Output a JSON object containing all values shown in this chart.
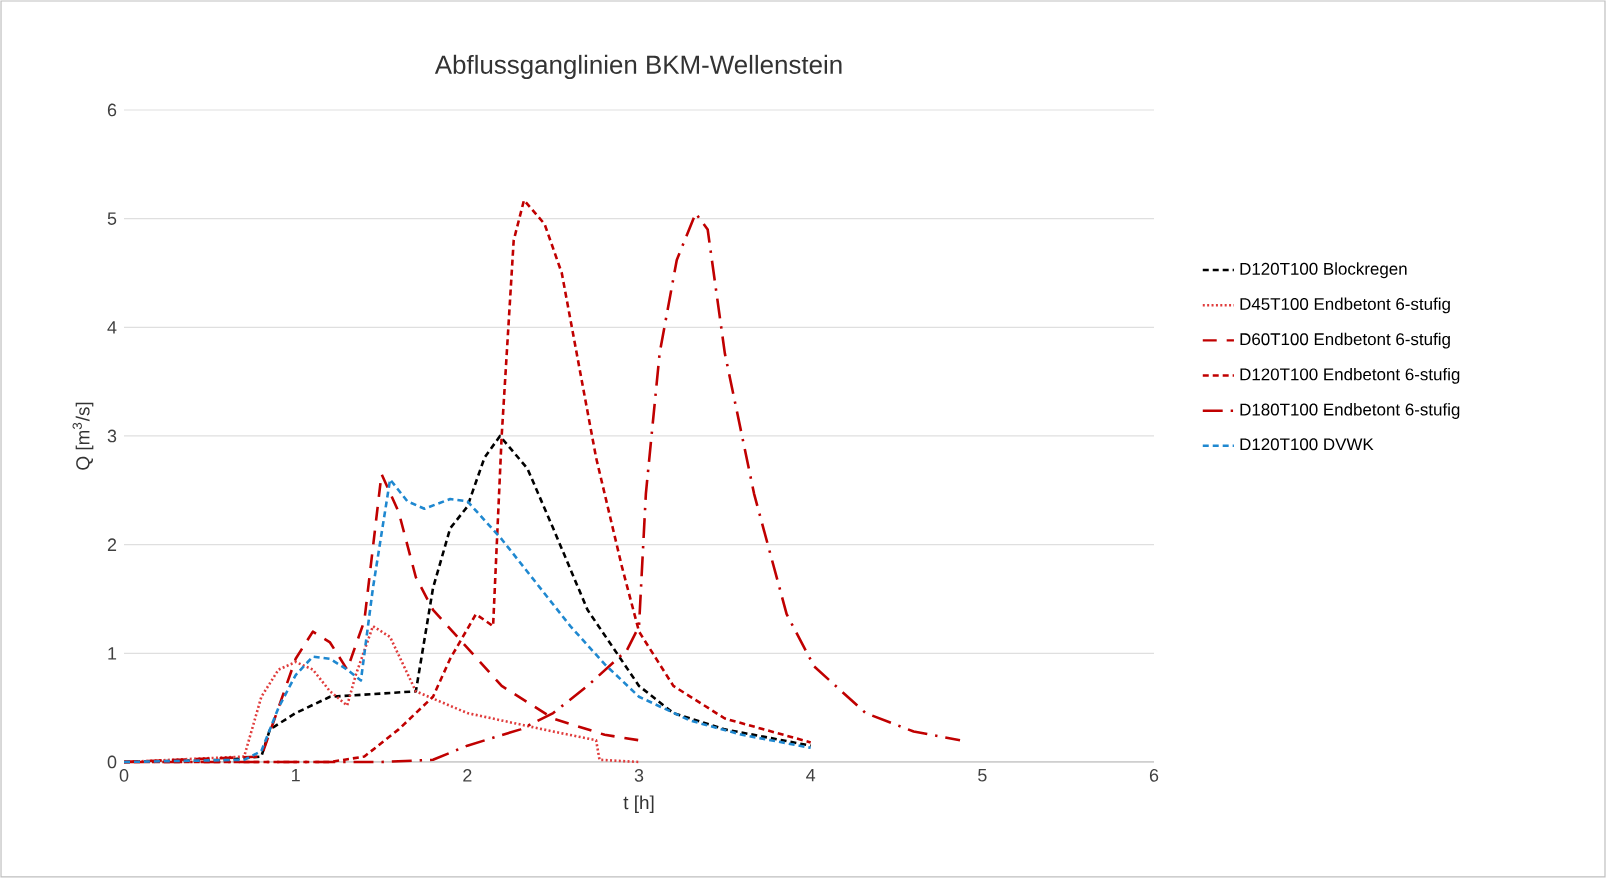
{
  "chart_data": {
    "type": "line",
    "title": "Abflussganglinien BKM-Wellenstein",
    "xlabel": "t [h]",
    "ylabel": "Q [m$^{3}$/s]",
    "xlim": [
      0,
      6
    ],
    "ylim": [
      0,
      6
    ],
    "xticks": [
      0,
      1,
      2,
      3,
      4,
      5,
      6
    ],
    "yticks": [
      0,
      1,
      2,
      3,
      4,
      5,
      6
    ],
    "grid": "y",
    "legend": "right",
    "marker": "none",
    "series": [
      {
        "name": "D120T100 Blockregen",
        "color": "#000000",
        "line_style": "dashed",
        "x": [
          0,
          0.6,
          0.8,
          0.85,
          1.0,
          1.2,
          1.4,
          1.5,
          1.7,
          1.8,
          1.9,
          2.0,
          2.1,
          2.19,
          2.35,
          2.5,
          2.7,
          3.0,
          3.2,
          3.5,
          4.0
        ],
        "values": [
          0,
          0.02,
          0.05,
          0.3,
          0.45,
          0.6,
          0.62,
          0.63,
          0.65,
          1.6,
          2.15,
          2.35,
          2.8,
          3.0,
          2.7,
          2.15,
          1.4,
          0.7,
          0.45,
          0.3,
          0.15
        ]
      },
      {
        "name": "D45T100 Endbetont 6-stufig",
        "color": "#e03c3c",
        "line_style": "dotted",
        "x": [
          0,
          0.7,
          0.8,
          0.9,
          1.0,
          1.1,
          1.2,
          1.3,
          1.35,
          1.45,
          1.55,
          1.7,
          2.0,
          2.5,
          2.75,
          2.77,
          3.0
        ],
        "values": [
          0,
          0.05,
          0.6,
          0.85,
          0.92,
          0.85,
          0.65,
          0.52,
          0.8,
          1.25,
          1.15,
          0.65,
          0.45,
          0.28,
          0.2,
          0.02,
          0.0
        ]
      },
      {
        "name": "D60T100 Endbetont 6-stufig",
        "color": "#c00000",
        "line_style": "long dashed",
        "x": [
          0,
          0.8,
          0.9,
          1.0,
          1.1,
          1.2,
          1.3,
          1.4,
          1.5,
          1.6,
          1.7,
          1.8,
          2.0,
          2.2,
          2.5,
          2.8,
          3.0
        ],
        "values": [
          0,
          0.05,
          0.5,
          0.95,
          1.2,
          1.1,
          0.85,
          1.3,
          2.65,
          2.3,
          1.7,
          1.4,
          1.05,
          0.7,
          0.4,
          0.25,
          0.2
        ]
      },
      {
        "name": "D120T100 Endbetont 6-stufig",
        "color": "#c00000",
        "line_style": "dashed",
        "x": [
          0,
          1.2,
          1.4,
          1.6,
          1.8,
          1.9,
          2.05,
          2.15,
          2.2,
          2.27,
          2.33,
          2.45,
          2.55,
          2.75,
          2.9,
          3.0,
          3.2,
          3.5,
          4.0
        ],
        "values": [
          0,
          0.0,
          0.05,
          0.3,
          0.6,
          0.95,
          1.36,
          1.25,
          3.0,
          4.8,
          5.17,
          4.95,
          4.5,
          2.8,
          1.8,
          1.2,
          0.7,
          0.4,
          0.18
        ]
      },
      {
        "name": "D180T100 Endbetont 6-stufig",
        "color": "#c00000",
        "line_style": "dash dot",
        "x": [
          0,
          1.5,
          1.8,
          2.0,
          2.31,
          2.5,
          2.7,
          2.93,
          3.0,
          3.04,
          3.12,
          3.22,
          3.33,
          3.4,
          3.5,
          3.67,
          3.86,
          4.02,
          4.32,
          4.6,
          4.87
        ],
        "values": [
          0,
          0.0,
          0.02,
          0.15,
          0.3,
          0.45,
          0.7,
          1.03,
          1.25,
          2.47,
          3.76,
          4.62,
          5.05,
          4.9,
          3.76,
          2.47,
          1.36,
          0.88,
          0.45,
          0.28,
          0.2
        ]
      },
      {
        "name": "D120T100 DVWK",
        "color": "#1f88d0",
        "line_style": "dashed",
        "x": [
          0,
          0.7,
          0.8,
          0.9,
          1.0,
          1.1,
          1.2,
          1.3,
          1.38,
          1.45,
          1.55,
          1.65,
          1.75,
          1.9,
          2.0,
          2.2,
          2.4,
          2.6,
          2.8,
          3.0,
          3.3,
          3.6,
          4.0
        ],
        "values": [
          0,
          0.02,
          0.1,
          0.5,
          0.8,
          0.97,
          0.95,
          0.85,
          0.75,
          1.6,
          2.6,
          2.4,
          2.33,
          2.42,
          2.4,
          2.05,
          1.65,
          1.25,
          0.9,
          0.6,
          0.38,
          0.25,
          0.13
        ]
      }
    ]
  }
}
